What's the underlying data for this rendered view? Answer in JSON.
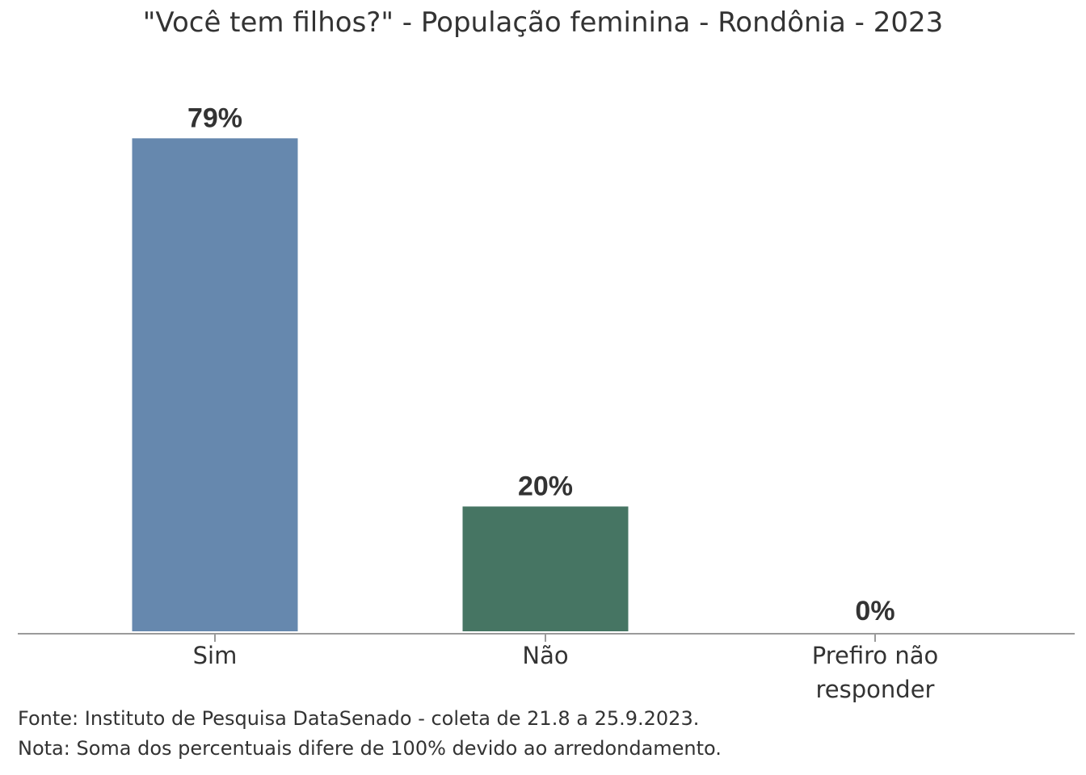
{
  "chart_data": {
    "type": "bar",
    "title": "\"Você tem filhos?\" - População feminina - Rondônia - 2023",
    "categories": [
      "Sim",
      "Não",
      "Prefiro não responder"
    ],
    "category_lines": [
      [
        "Sim"
      ],
      [
        "Não"
      ],
      [
        "Prefiro não",
        "responder"
      ]
    ],
    "values": [
      79,
      20,
      0
    ],
    "value_labels": [
      "79%",
      "20%",
      "0%"
    ],
    "colors": [
      "#6688ae",
      "#467563",
      "#8b6a5a"
    ],
    "ylim": [
      0,
      100
    ],
    "grid": false,
    "legend": "none",
    "xlabel": "",
    "ylabel": ""
  },
  "footnotes": {
    "source": "Fonte: Instituto de Pesquisa DataSenado - coleta de 21.8 a 25.9.2023.",
    "note": "Nota: Soma dos percentuais difere de 100% devido ao arredondamento."
  }
}
